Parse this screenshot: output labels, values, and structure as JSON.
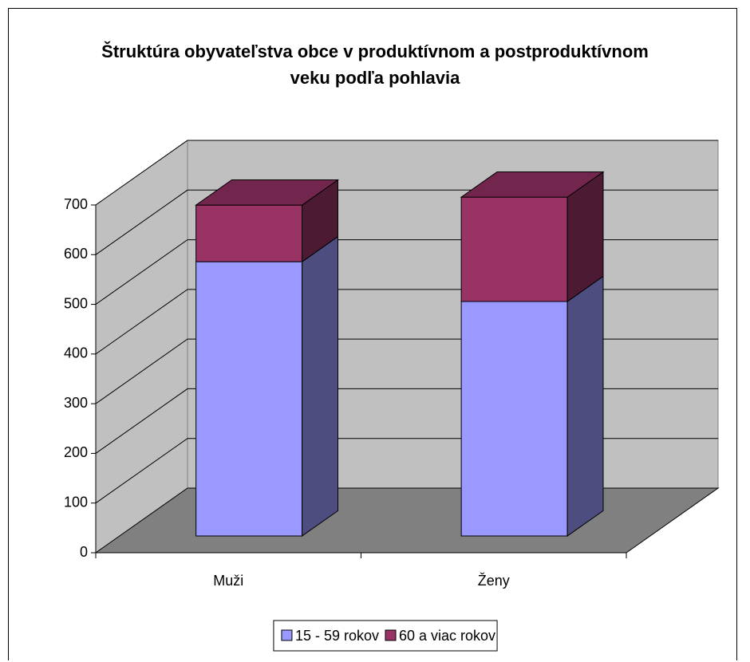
{
  "chart_data": {
    "type": "bar3d_stacked",
    "title": "Štruktúra obyvateľstva obce v produktívnom a postproduktívnom veku podľa pohlavia",
    "categories": [
      "Muži",
      "Ženy"
    ],
    "series": [
      {
        "name": "15 - 59 rokov",
        "color": "#9999ff",
        "values": [
          552,
          472
        ]
      },
      {
        "name": "60 a viac rokov",
        "color": "#993366",
        "values": [
          114,
          210
        ]
      }
    ],
    "ylim": [
      0,
      700
    ],
    "yticks": [
      0,
      100,
      200,
      300,
      400,
      500,
      600,
      700
    ],
    "grid": true,
    "legend": "bottom"
  }
}
